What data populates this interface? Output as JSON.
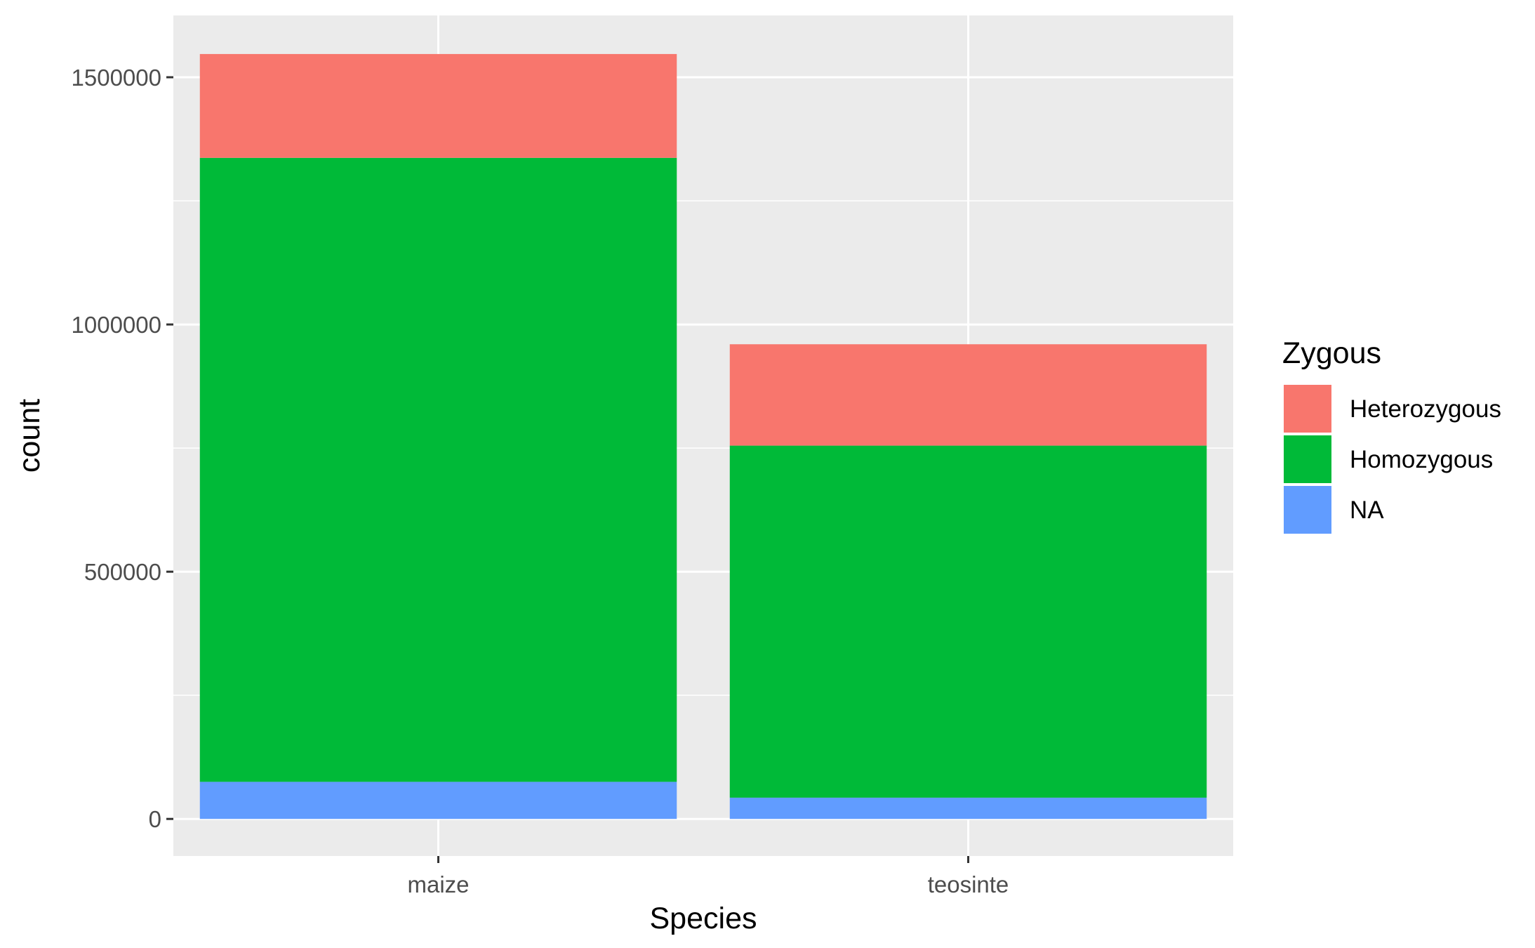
{
  "chart_data": {
    "type": "bar",
    "stacked": true,
    "categories": [
      "maize",
      "teosinte"
    ],
    "series": [
      {
        "name": "NA",
        "color": "#619CFF",
        "values": [
          75000,
          43000
        ]
      },
      {
        "name": "Homozygous",
        "color": "#00BA38",
        "values": [
          1262000,
          712000
        ]
      },
      {
        "name": "Heterozygous",
        "color": "#F8766D",
        "values": [
          210000,
          205000
        ]
      }
    ],
    "xlabel": "Species",
    "ylabel": "count",
    "ylim": [
      -75000,
      1625000
    ],
    "yticks": [
      0,
      500000,
      1000000,
      1500000
    ],
    "ytick_labels": [
      "0",
      "500000",
      "1000000",
      "1500000"
    ],
    "grid": true,
    "legend": {
      "title": "Zygous",
      "position": "right",
      "items": [
        {
          "label": "Heterozygous",
          "color": "#F8766D"
        },
        {
          "label": "Homozygous",
          "color": "#00BA38"
        },
        {
          "label": "NA",
          "color": "#619CFF"
        }
      ]
    }
  }
}
